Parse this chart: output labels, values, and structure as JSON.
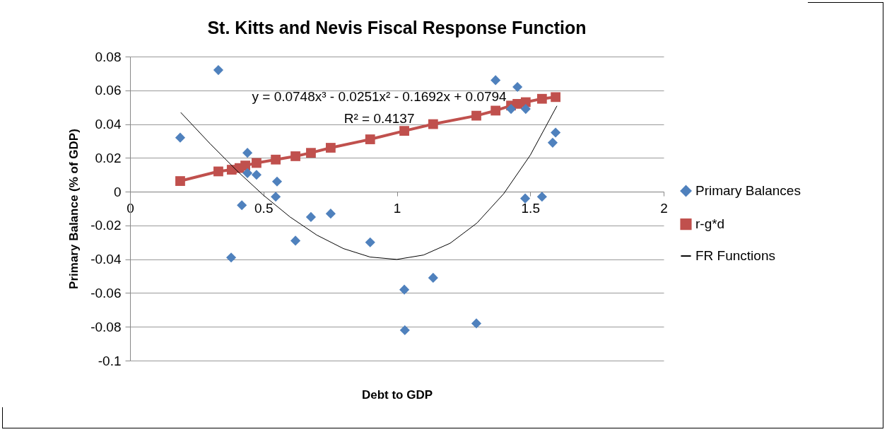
{
  "chart_data": {
    "type": "scatter",
    "title": "St. Kitts and Nevis Fiscal Response Function",
    "xlabel": "Debt to GDP",
    "ylabel": "Primary Balance (% of GDP)",
    "xlim": [
      0,
      2
    ],
    "xticks": [
      0,
      0.5,
      1,
      1.5,
      2
    ],
    "ylim": [
      -0.1,
      0.08
    ],
    "yticks": [
      -0.1,
      -0.08,
      -0.06,
      -0.04,
      -0.02,
      0,
      0.02,
      0.04,
      0.06,
      0.08
    ],
    "grid": "y",
    "legend": "right",
    "series": [
      {
        "name": "Primary Balances",
        "marker": "diamond",
        "color": "#4f81bd",
        "x": [
          0.188,
          0.331,
          0.379,
          0.419,
          0.44,
          0.44,
          0.474,
          0.551,
          0.546,
          0.62,
          0.678,
          0.752,
          0.9,
          1.028,
          1.03,
          1.136,
          1.298,
          1.37,
          1.452,
          1.428,
          1.483,
          1.481,
          1.544,
          1.595,
          1.584
        ],
        "values": [
          0.032,
          0.072,
          -0.039,
          -0.008,
          0.023,
          0.011,
          0.01,
          0.006,
          -0.003,
          -0.029,
          -0.015,
          -0.013,
          -0.03,
          -0.058,
          -0.082,
          -0.051,
          -0.078,
          0.066,
          0.062,
          0.049,
          0.049,
          -0.004,
          -0.003,
          0.035,
          0.029
        ]
      },
      {
        "name": "r-g*d",
        "type": "line",
        "marker": "square",
        "color": "#c0504d",
        "x": [
          0.188,
          0.331,
          0.381,
          0.41,
          0.432,
          0.474,
          0.546,
          0.62,
          0.678,
          0.752,
          0.9,
          1.028,
          1.136,
          1.298,
          1.37,
          1.428,
          1.452,
          1.483,
          1.544,
          1.595
        ],
        "values": [
          0.0063,
          0.012,
          0.013,
          0.014,
          0.0155,
          0.017,
          0.019,
          0.021,
          0.023,
          0.026,
          0.031,
          0.036,
          0.04,
          0.045,
          0.048,
          0.051,
          0.052,
          0.053,
          0.055,
          0.056
        ]
      },
      {
        "name": "FR Functions",
        "type": "line",
        "marker": "none",
        "color": "#000000",
        "x": [
          0.19,
          0.3,
          0.4,
          0.5,
          0.6,
          0.7,
          0.8,
          0.9,
          1.0,
          1.1,
          1.2,
          1.3,
          1.4,
          1.5,
          1.6
        ],
        "values": [
          0.0469,
          0.0284,
          0.0125,
          -0.0021,
          -0.015,
          -0.0257,
          -0.0337,
          -0.0387,
          -0.0401,
          -0.0375,
          -0.0305,
          -0.0186,
          -0.0013,
          0.0216,
          0.0508
        ]
      }
    ],
    "annotations": [
      "y = 0.0748x³ - 0.0251x² - 0.1692x + 0.0794",
      "R² = 0.4137"
    ]
  }
}
